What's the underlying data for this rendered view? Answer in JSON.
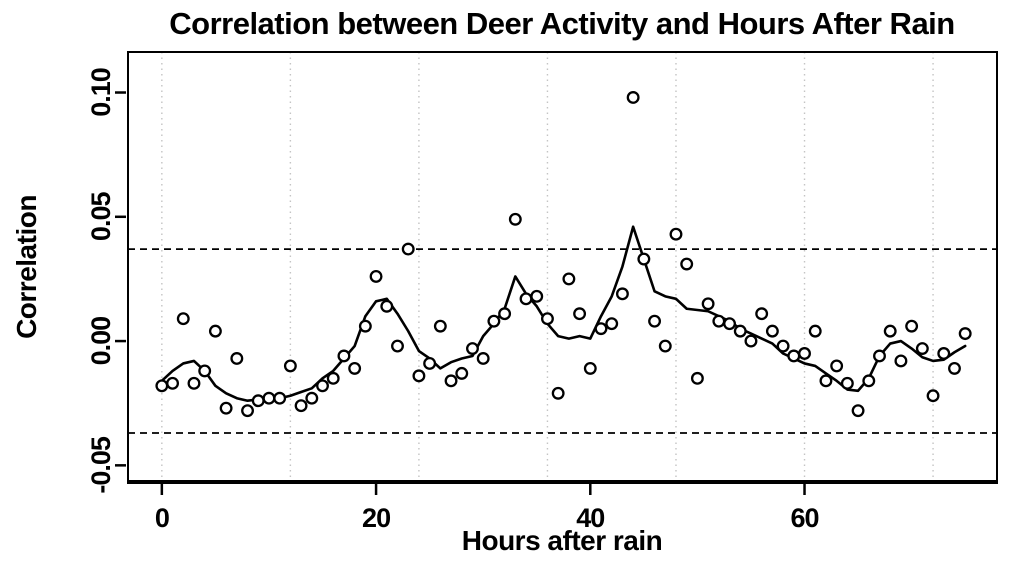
{
  "title": "Correlation between Deer Activity and Hours After Rain",
  "chart_data": {
    "type": "scatter",
    "title": "Correlation between Deer Activity and Hours After Rain",
    "xlabel": "Hours after rain",
    "ylabel": "Correlation",
    "hours": [
      0,
      1,
      2,
      3,
      4,
      5,
      6,
      7,
      8,
      9,
      10,
      11,
      12,
      13,
      14,
      15,
      16,
      17,
      18,
      19,
      20,
      21,
      22,
      23,
      24,
      25,
      26,
      27,
      28,
      29,
      30,
      31,
      32,
      33,
      34,
      35,
      36,
      37,
      38,
      39,
      40,
      41,
      42,
      43,
      44,
      45,
      46,
      47,
      48,
      49,
      50,
      51,
      52,
      53,
      54,
      55,
      56,
      57,
      58,
      59,
      60,
      61,
      62,
      63,
      64,
      65,
      66,
      67,
      68,
      69,
      70,
      71,
      72,
      73,
      74,
      75
    ],
    "correlation": [
      -0.018,
      -0.017,
      0.009,
      -0.017,
      -0.012,
      0.004,
      -0.027,
      -0.007,
      -0.028,
      -0.024,
      -0.023,
      -0.023,
      -0.01,
      -0.026,
      -0.023,
      -0.018,
      -0.015,
      -0.006,
      -0.011,
      0.006,
      0.026,
      0.014,
      -0.002,
      0.037,
      -0.014,
      -0.009,
      0.006,
      -0.016,
      -0.013,
      -0.003,
      -0.007,
      0.008,
      0.011,
      0.049,
      0.017,
      0.018,
      0.009,
      -0.021,
      0.025,
      0.011,
      -0.011,
      0.005,
      0.007,
      0.019,
      0.098,
      0.033,
      0.008,
      -0.002,
      0.043,
      0.031,
      -0.015,
      0.015,
      0.008,
      0.007,
      0.004,
      0.0,
      0.011,
      0.004,
      -0.002,
      -0.006,
      -0.005,
      0.004,
      -0.016,
      -0.01,
      -0.017,
      -0.028,
      -0.016,
      -0.006,
      0.004,
      -0.008,
      0.006,
      -0.003,
      -0.022,
      -0.005,
      -0.011,
      0.003
    ],
    "smoother": [
      -0.016,
      -0.012,
      -0.009,
      -0.008,
      -0.012,
      -0.018,
      -0.021,
      -0.023,
      -0.024,
      -0.0235,
      -0.0235,
      -0.023,
      -0.022,
      -0.0205,
      -0.019,
      -0.015,
      -0.012,
      -0.007,
      -0.002,
      0.01,
      0.016,
      0.017,
      0.011,
      0.004,
      -0.004,
      -0.007,
      -0.011,
      -0.0085,
      -0.007,
      -0.006,
      0.002,
      0.007,
      0.013,
      0.026,
      0.019,
      0.014,
      0.007,
      0.002,
      0.001,
      0.002,
      0.001,
      0.01,
      0.018,
      0.03,
      0.046,
      0.033,
      0.02,
      0.018,
      0.017,
      0.013,
      0.0125,
      0.012,
      0.01,
      0.008,
      0.005,
      0.003,
      0.001,
      -0.001,
      -0.005,
      -0.007,
      -0.009,
      -0.01,
      -0.013,
      -0.016,
      -0.0195,
      -0.02,
      -0.015,
      -0.006,
      -0.001,
      0.0,
      -0.003,
      -0.0065,
      -0.008,
      -0.0075,
      -0.0045,
      -0.002
    ],
    "confidence_bounds": [
      0.037,
      -0.037
    ],
    "x_ticks": [
      0,
      20,
      40,
      60
    ],
    "x_tick_labels": [
      "0",
      "20",
      "40",
      "60"
    ],
    "y_ticks": [
      -0.05,
      0.0,
      0.05,
      0.1
    ],
    "y_tick_labels": [
      "-0.05",
      "0.00",
      "0.05",
      "0.10"
    ],
    "gridlines_x": [
      0,
      12,
      24,
      36,
      48,
      60,
      72
    ],
    "xlim": [
      -3.16,
      77.97
    ],
    "ylim": [
      -0.0567,
      0.1163
    ],
    "grid": "vertical dotted gridlines only",
    "legend": "none",
    "marker": "open-circle",
    "colors": {
      "points_stroke": "#000000",
      "points_fill": "#ffffff",
      "smoother_line": "#000000",
      "confidence_line": "#000000",
      "gridline": "#c4c4c4",
      "axis": "#000000",
      "background": "#ffffff"
    }
  }
}
